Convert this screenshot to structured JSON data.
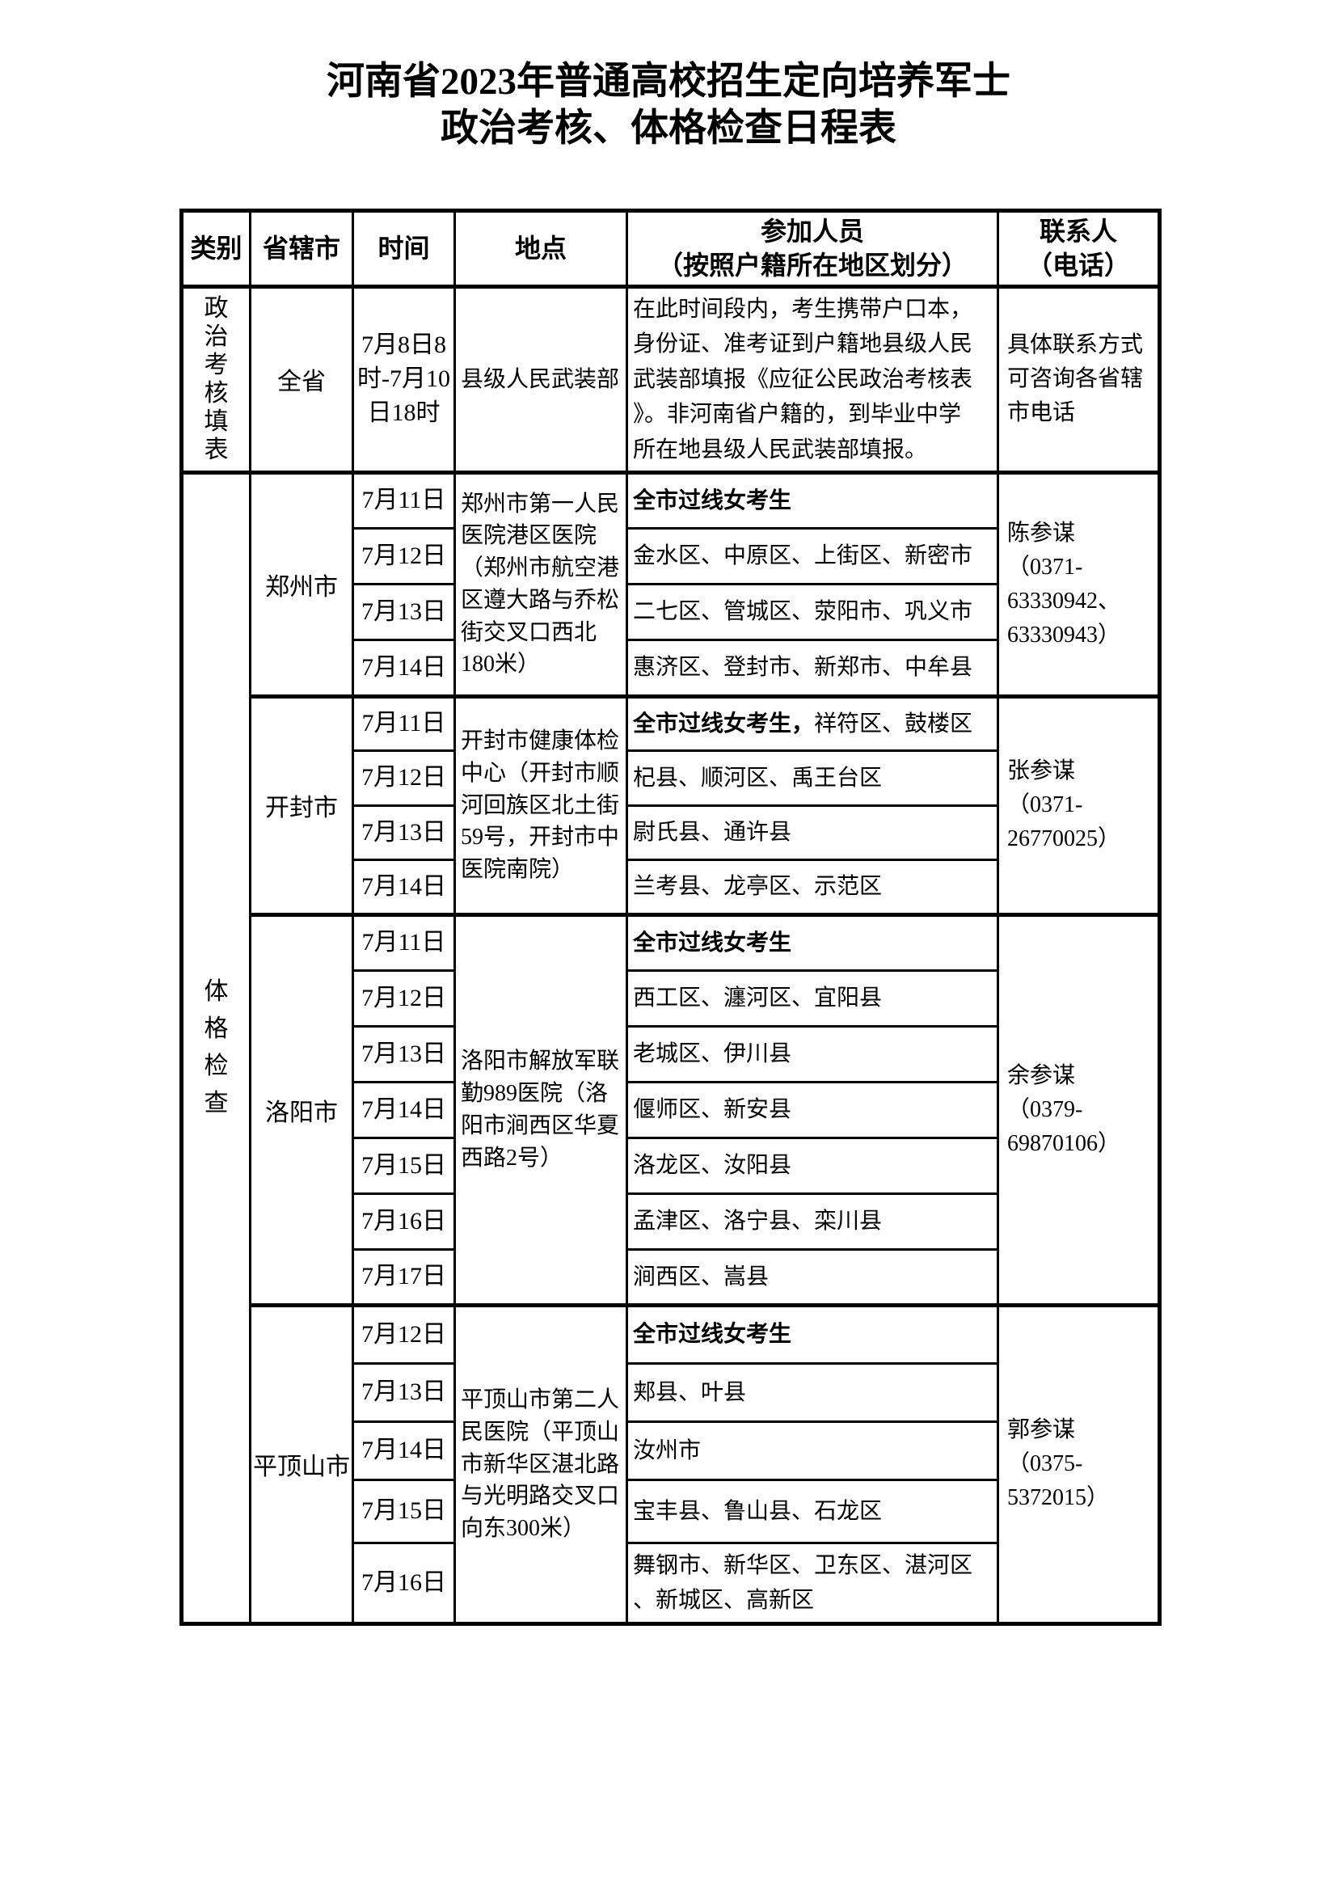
{
  "page": {
    "background_color": "#ffffff",
    "text_color": "#000000",
    "border_color": "#000000"
  },
  "title": {
    "line1": "河南省2023年普通高校招生定向培养军士",
    "line2": "政治考核、体格检查日程表"
  },
  "table": {
    "headers": [
      "类别",
      "省辖市",
      "时间",
      "地点",
      "参加人员\n（按照户籍所在地区划分）",
      "联系人\n（电话）"
    ],
    "sections": [
      {
        "category": "政治考核填表",
        "groups": [
          {
            "city": "全省",
            "location": "县级人民武装部",
            "contact": "具体联系方式\n可咨询各省辖\n市电话",
            "rows": [
              {
                "time": "7月8日8\n时-7月10\n日18时",
                "participants": "在此时间段内，考生携带户口本，\n身份证、准考证到户籍地县级人民\n武装部填报《应征公民政治考核表\n》。非河南省户籍的，到毕业中学\n所在地县级人民武装部填报。"
              }
            ]
          }
        ]
      },
      {
        "category": "体格检查",
        "groups": [
          {
            "city": "郑州市",
            "location": "郑州市第一人民\n医院港区医院\n（郑州市航空港\n区遵大路与乔松\n街交叉口西北\n180米）",
            "contact": "陈参谋\n（0371-\n63330942、\n63330943）",
            "rows": [
              {
                "time": "7月11日",
                "participants_bold": "全市过线女考生"
              },
              {
                "time": "7月12日",
                "participants": "金水区、中原区、上街区、新密市"
              },
              {
                "time": "7月13日",
                "participants": "二七区、管城区、荥阳市、巩义市"
              },
              {
                "time": "7月14日",
                "participants": "惠济区、登封市、新郑市、中牟县"
              }
            ]
          },
          {
            "city": "开封市",
            "location": "开封市健康体检\n中心（开封市顺\n河回族区北土街\n59号，开封市中\n医院南院）",
            "contact": "张参谋\n（0371-\n26770025）",
            "rows": [
              {
                "time": "7月11日",
                "participants_bold": "全市过线女考生，",
                "participants": "祥符区、鼓楼区"
              },
              {
                "time": "7月12日",
                "participants": "杞县、顺河区、禹王台区"
              },
              {
                "time": "7月13日",
                "participants": "尉氏县、通许县"
              },
              {
                "time": "7月14日",
                "participants": "兰考县、龙亭区、示范区"
              }
            ]
          },
          {
            "city": "洛阳市",
            "location": "洛阳市解放军联\n勤989医院（洛\n阳市涧西区华夏\n西路2号）",
            "contact": "余参谋\n（0379-\n69870106）",
            "rows": [
              {
                "time": "7月11日",
                "participants_bold": "全市过线女考生"
              },
              {
                "time": "7月12日",
                "participants": "西工区、瀍河区、宜阳县"
              },
              {
                "time": "7月13日",
                "participants": "老城区、伊川县"
              },
              {
                "time": "7月14日",
                "participants": "偃师区、新安县"
              },
              {
                "time": "7月15日",
                "participants": "洛龙区、汝阳县"
              },
              {
                "time": "7月16日",
                "participants": "孟津区、洛宁县、栾川县"
              },
              {
                "time": "7月17日",
                "participants": "涧西区、嵩县"
              }
            ]
          },
          {
            "city": "平顶山市",
            "location": "平顶山市第二人\n民医院（平顶山\n市新华区湛北路\n与光明路交叉口\n向东300米）",
            "contact": "郭参谋\n（0375-\n5372015）",
            "rows": [
              {
                "time": "7月12日",
                "participants_bold": "全市过线女考生"
              },
              {
                "time": "7月13日",
                "participants": "郏县、叶县"
              },
              {
                "time": "7月14日",
                "participants": "汝州市"
              },
              {
                "time": "7月15日",
                "participants": "宝丰县、鲁山县、石龙区"
              },
              {
                "time": "7月16日",
                "participants": "舞钢市、新华区、卫东区、湛河区\n、新城区、高新区"
              }
            ]
          }
        ]
      }
    ]
  }
}
